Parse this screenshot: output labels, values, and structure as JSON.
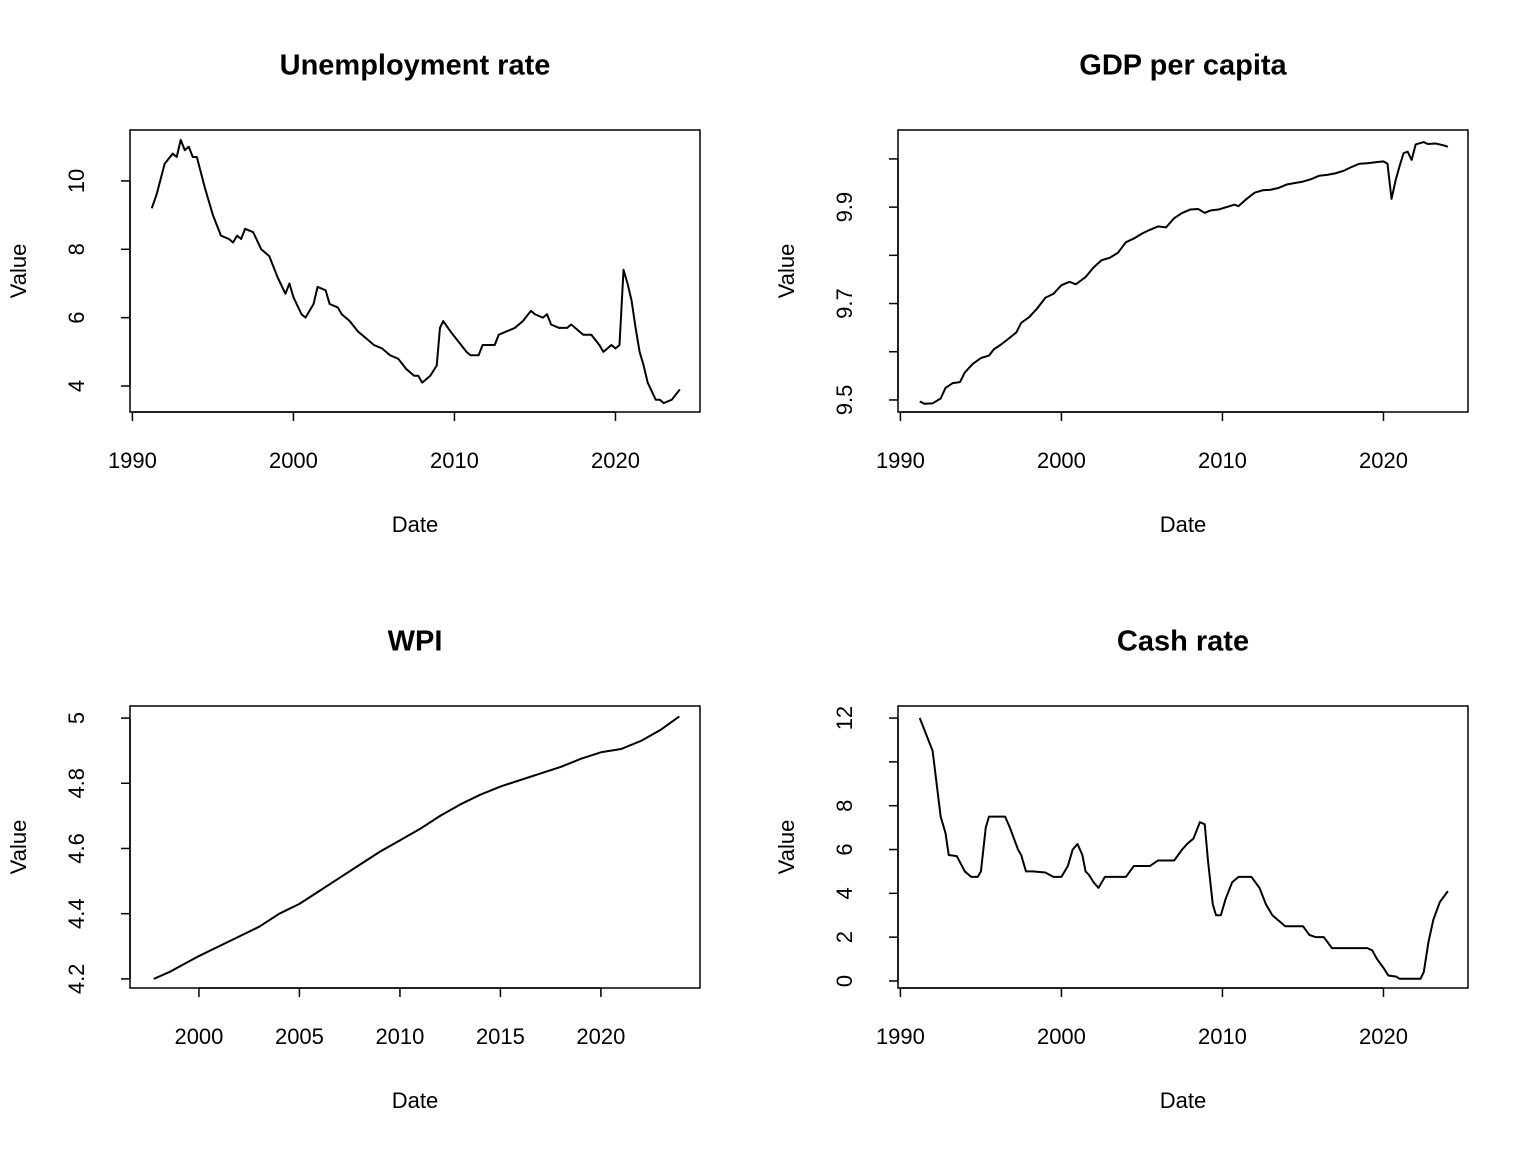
{
  "chart_data": [
    {
      "type": "line",
      "title": "Unemployment rate",
      "xlabel": "Date",
      "ylabel": "Value",
      "color": "#000000",
      "xlim": [
        1989.85,
        2025.25
      ],
      "ylim": [
        3.24,
        11.49
      ],
      "xticks": [
        1990,
        2000,
        2010,
        2020
      ],
      "yticks": [
        4,
        6,
        8,
        10
      ],
      "x": [
        1991.2,
        1991.5,
        1992.0,
        1992.5,
        1992.75,
        1993.0,
        1993.25,
        1993.5,
        1993.75,
        1994.0,
        1994.5,
        1995.0,
        1995.5,
        1996.0,
        1996.25,
        1996.5,
        1996.75,
        1997.0,
        1997.5,
        1998.0,
        1998.5,
        1999.0,
        1999.5,
        1999.75,
        2000.0,
        2000.5,
        2000.75,
        2001.25,
        2001.5,
        2002.0,
        2002.25,
        2002.75,
        2003.0,
        2003.5,
        2004.0,
        2004.5,
        2005.0,
        2005.5,
        2006.0,
        2006.5,
        2007.0,
        2007.5,
        2007.75,
        2008.0,
        2008.5,
        2008.9,
        2009.1,
        2009.3,
        2009.75,
        2010.25,
        2010.75,
        2011.0,
        2011.5,
        2011.75,
        2012.5,
        2012.75,
        2013.25,
        2013.75,
        2014.25,
        2014.75,
        2015.0,
        2015.5,
        2015.75,
        2016.0,
        2016.5,
        2017.0,
        2017.25,
        2017.75,
        2018.0,
        2018.5,
        2019.0,
        2019.25,
        2019.75,
        2020.0,
        2020.25,
        2020.5,
        2020.75,
        2021.0,
        2021.25,
        2021.5,
        2021.75,
        2022.0,
        2022.5,
        2022.75,
        2023.0,
        2023.5,
        2024.0
      ],
      "values": [
        9.2,
        9.6,
        10.5,
        10.8,
        10.7,
        11.2,
        10.9,
        11.0,
        10.7,
        10.7,
        9.8,
        9.0,
        8.4,
        8.3,
        8.2,
        8.4,
        8.3,
        8.6,
        8.5,
        8.0,
        7.8,
        7.2,
        6.7,
        7.0,
        6.6,
        6.1,
        6.0,
        6.4,
        6.9,
        6.8,
        6.4,
        6.3,
        6.1,
        5.9,
        5.6,
        5.4,
        5.2,
        5.1,
        4.9,
        4.8,
        4.5,
        4.3,
        4.3,
        4.1,
        4.3,
        4.6,
        5.7,
        5.9,
        5.6,
        5.3,
        5.0,
        4.9,
        4.9,
        5.2,
        5.2,
        5.5,
        5.6,
        5.7,
        5.9,
        6.2,
        6.1,
        6.0,
        6.1,
        5.8,
        5.7,
        5.7,
        5.8,
        5.6,
        5.5,
        5.5,
        5.2,
        5.0,
        5.2,
        5.1,
        5.2,
        7.4,
        7.0,
        6.5,
        5.7,
        5.0,
        4.6,
        4.1,
        3.6,
        3.6,
        3.5,
        3.6,
        3.9
      ]
    },
    {
      "type": "line",
      "title": "GDP per capita",
      "xlabel": "Date",
      "ylabel": "Value",
      "color": "#000000",
      "xlim": [
        1989.85,
        2025.25
      ],
      "ylim": [
        9.475,
        10.06
      ],
      "xticks": [
        1990,
        2000,
        2010,
        2020
      ],
      "yticks": [
        9.5,
        9.6,
        9.7,
        9.8,
        9.9,
        10.0
      ],
      "x": [
        1991.2,
        1991.5,
        1992.0,
        1992.5,
        1992.8,
        1993.25,
        1993.7,
        1994.0,
        1994.5,
        1995.0,
        1995.5,
        1995.8,
        1996.25,
        1996.75,
        1997.2,
        1997.5,
        1998.0,
        1998.5,
        1999.0,
        1999.5,
        2000.0,
        2000.5,
        2000.9,
        2001.5,
        2002.0,
        2002.5,
        2003.0,
        2003.5,
        2004.0,
        2004.5,
        2005.0,
        2005.5,
        2006.0,
        2006.5,
        2007.0,
        2007.5,
        2008.0,
        2008.5,
        2008.9,
        2009.25,
        2009.75,
        2010.25,
        2010.75,
        2011.0,
        2011.5,
        2012.0,
        2012.5,
        2013.0,
        2013.5,
        2014.0,
        2014.5,
        2015.0,
        2015.5,
        2016.0,
        2016.5,
        2017.0,
        2017.5,
        2018.0,
        2018.5,
        2019.0,
        2019.5,
        2020.0,
        2020.25,
        2020.5,
        2020.75,
        2021.0,
        2021.25,
        2021.5,
        2021.75,
        2022.0,
        2022.5,
        2022.75,
        2023.25,
        2023.75,
        2024.0
      ],
      "values": [
        9.497,
        9.492,
        9.493,
        9.503,
        9.525,
        9.535,
        9.537,
        9.557,
        9.575,
        9.587,
        9.592,
        9.605,
        9.615,
        9.628,
        9.64,
        9.66,
        9.672,
        9.69,
        9.712,
        9.72,
        9.738,
        9.745,
        9.74,
        9.755,
        9.775,
        9.79,
        9.795,
        9.805,
        9.827,
        9.835,
        9.845,
        9.853,
        9.86,
        9.858,
        9.877,
        9.888,
        9.895,
        9.896,
        9.888,
        9.893,
        9.895,
        9.9,
        9.905,
        9.902,
        9.917,
        9.93,
        9.935,
        9.936,
        9.94,
        9.947,
        9.95,
        9.953,
        9.958,
        9.965,
        9.967,
        9.97,
        9.975,
        9.983,
        9.99,
        9.991,
        9.993,
        9.995,
        9.99,
        9.917,
        9.955,
        9.985,
        10.012,
        10.015,
        9.998,
        10.03,
        10.035,
        10.031,
        10.032,
        10.028,
        10.025
      ]
    },
    {
      "type": "line",
      "title": "WPI",
      "xlabel": "Date",
      "ylabel": "Value",
      "color": "#000000",
      "xlim": [
        1996.57,
        2024.93
      ],
      "ylim": [
        4.172,
        5.037
      ],
      "xticks": [
        2000,
        2005,
        2010,
        2015,
        2020
      ],
      "yticks": [
        4.2,
        4.4,
        4.6,
        4.8,
        5.0
      ],
      "x": [
        1997.75,
        1998.5,
        2000.0,
        2001.0,
        2002.0,
        2003.0,
        2004.0,
        2005.0,
        2006.0,
        2007.0,
        2008.0,
        2009.0,
        2010.0,
        2011.0,
        2012.0,
        2013.0,
        2014.0,
        2015.0,
        2016.0,
        2017.0,
        2018.0,
        2019.0,
        2020.0,
        2021.0,
        2022.0,
        2023.0,
        2023.9
      ],
      "values": [
        4.2,
        4.22,
        4.27,
        4.3,
        4.33,
        4.36,
        4.4,
        4.43,
        4.47,
        4.51,
        4.55,
        4.59,
        4.625,
        4.66,
        4.7,
        4.735,
        4.765,
        4.79,
        4.81,
        4.83,
        4.85,
        4.875,
        4.895,
        4.905,
        4.93,
        4.965,
        5.005
      ]
    },
    {
      "type": "line",
      "title": "Cash rate",
      "xlabel": "Date",
      "ylabel": "Value",
      "color": "#000000",
      "xlim": [
        1989.85,
        2025.25
      ],
      "ylim": [
        -0.32,
        12.55
      ],
      "xticks": [
        1990,
        2000,
        2010,
        2020
      ],
      "yticks": [
        0,
        2,
        4,
        6,
        8,
        10,
        12
      ],
      "x": [
        1991.2,
        1992.0,
        1992.5,
        1992.8,
        1993.0,
        1993.5,
        1994.0,
        1994.4,
        1994.8,
        1995.0,
        1995.3,
        1995.5,
        1996.5,
        1996.8,
        1997.3,
        1997.5,
        1997.8,
        1998.2,
        1999.0,
        1999.5,
        2000.0,
        2000.4,
        2000.7,
        2001.0,
        2001.3,
        2001.5,
        2001.7,
        2002.0,
        2002.3,
        2002.7,
        2003.5,
        2004.0,
        2004.5,
        2005.5,
        2006.0,
        2007.0,
        2007.5,
        2007.8,
        2008.2,
        2008.6,
        2008.9,
        2009.1,
        2009.4,
        2009.6,
        2009.9,
        2010.2,
        2010.6,
        2011.0,
        2011.8,
        2012.3,
        2012.7,
        2013.1,
        2013.5,
        2013.9,
        2015.0,
        2015.4,
        2015.8,
        2016.3,
        2016.8,
        2019.0,
        2019.3,
        2019.6,
        2020.0,
        2020.3,
        2020.8,
        2021.0,
        2022.3,
        2022.5,
        2022.8,
        2023.1,
        2023.5,
        2024.0
      ],
      "values": [
        12.0,
        10.5,
        7.5,
        6.75,
        5.75,
        5.7,
        5.0,
        4.75,
        4.75,
        5.0,
        7.0,
        7.5,
        7.5,
        7.0,
        6.0,
        5.75,
        5.0,
        5.0,
        4.95,
        4.75,
        4.75,
        5.25,
        6.0,
        6.25,
        5.75,
        5.0,
        4.85,
        4.5,
        4.25,
        4.75,
        4.75,
        4.75,
        5.25,
        5.25,
        5.5,
        5.5,
        6.0,
        6.25,
        6.5,
        7.25,
        7.15,
        5.5,
        3.5,
        3.0,
        3.0,
        3.75,
        4.5,
        4.75,
        4.75,
        4.25,
        3.5,
        3.0,
        2.75,
        2.5,
        2.5,
        2.1,
        2.0,
        2.0,
        1.5,
        1.5,
        1.4,
        1.0,
        0.6,
        0.25,
        0.2,
        0.1,
        0.1,
        0.4,
        1.8,
        2.8,
        3.6,
        4.1
      ]
    }
  ]
}
